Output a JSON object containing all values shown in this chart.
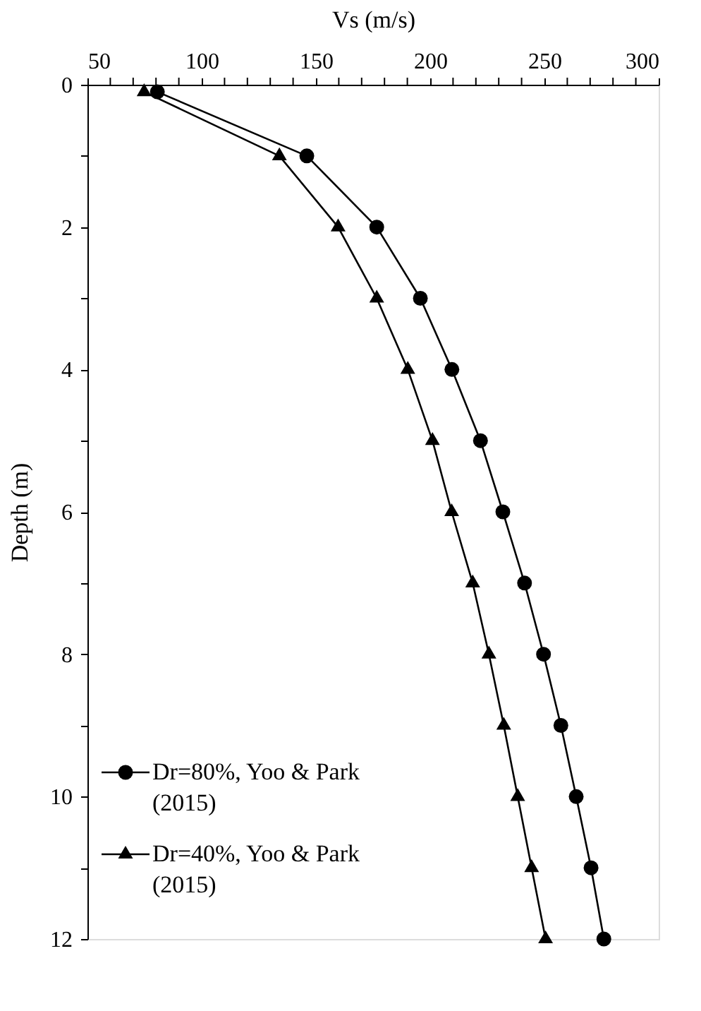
{
  "chart_data": {
    "type": "line",
    "xlabel": "Vs (m/s)",
    "ylabel": "Depth (m)",
    "xlim": [
      50,
      300
    ],
    "ylim": [
      12,
      0
    ],
    "xticks": [
      50,
      {
        "value": 60,
        "label": null
      },
      {
        "value": 70,
        "label": null
      },
      {
        "value": 80,
        "label": null
      },
      {
        "value": 90,
        "label": null
      },
      100,
      {
        "value": 110,
        "label": null
      },
      {
        "value": 120,
        "label": null
      },
      {
        "value": 130,
        "label": null
      },
      {
        "value": 140,
        "label": null
      },
      150,
      {
        "value": 160,
        "label": null
      },
      {
        "value": 170,
        "label": null
      },
      {
        "value": 180,
        "label": null
      },
      {
        "value": 190,
        "label": null
      },
      200,
      {
        "value": 210,
        "label": null
      },
      {
        "value": 220,
        "label": null
      },
      {
        "value": 230,
        "label": null
      },
      {
        "value": 240,
        "label": null
      },
      250,
      {
        "value": 260,
        "label": null
      },
      {
        "value": 270,
        "label": null
      },
      {
        "value": 280,
        "label": null
      },
      {
        "value": 290,
        "label": null
      },
      300
    ],
    "yticks": [
      0,
      {
        "value": 1,
        "label": null
      },
      2,
      {
        "value": 3,
        "label": null
      },
      4,
      {
        "value": 5,
        "label": null
      },
      6,
      {
        "value": 7,
        "label": null
      },
      8,
      {
        "value": 9,
        "label": null
      },
      10,
      {
        "value": 11,
        "label": null
      },
      12
    ],
    "grid": false,
    "legend": "bottom left",
    "line_style": "solid",
    "series": [
      {
        "name": "Dr=80%, Yoo & Park (2015)",
        "color": "#000000",
        "marker": "circle",
        "x": [
          80.6,
          146,
          176.6,
          195.7,
          209.5,
          222,
          231.8,
          241.3,
          249.6,
          257.2,
          263.9,
          270.4,
          276
        ],
        "values": [
          0.1,
          1,
          2,
          3,
          4,
          5,
          6,
          7,
          8,
          9,
          10,
          11,
          12
        ]
      },
      {
        "name": "Dr=40%, Yoo & Park (2015)",
        "color": "#000000",
        "marker": "triangle",
        "x": [
          74.8,
          134,
          159.7,
          176.6,
          190.2,
          201,
          209.4,
          218.6,
          225.7,
          232.2,
          238.3,
          244.4,
          250.5
        ],
        "values": [
          0.1,
          1,
          2,
          3,
          4,
          5,
          6,
          7,
          8,
          9,
          10,
          11,
          12
        ]
      }
    ]
  }
}
